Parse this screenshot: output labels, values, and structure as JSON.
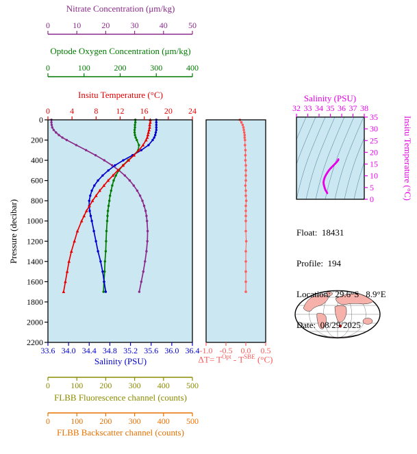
{
  "titles": {
    "nitrate": "Nitrate Concentration (μm/kg)",
    "oxygen": "Optode Oxygen Concentration (μm/kg)",
    "temperature": "Insitu Temperature (°C)",
    "pressure": "Pressure (decibar)",
    "salinity": "Salinity (PSU)",
    "fluorescence": "FLBB Fluorescence channel (counts)",
    "backscatter": "FLBB Backscatter channel (counts)",
    "ts_salinity": "Salinity (PSU)",
    "ts_temperature": "Insitu Temperature (°C)"
  },
  "delta_label": {
    "prefix": "ΔT= T",
    "sup1": "Opt",
    "mid": " - T",
    "sup2": "SBE",
    "suffix": " (°C)"
  },
  "info": {
    "float_label": "Float:  ",
    "float_value": "18431",
    "profile_label": "Profile:  ",
    "profile_value": "194",
    "location_label": "Location:  ",
    "location_value": "29.6°S   8.9°E",
    "date_label": "Date:  ",
    "date_value": "08/29/2025"
  },
  "colors": {
    "nitrate": "#8a2b8a",
    "oxygen": "#007a00",
    "temperature": "#e60000",
    "salinity": "#0000cd",
    "pressure": "#000000",
    "delta_t": "#ff5a5a",
    "fluorescence": "#8b8b00",
    "backscatter": "#e87000",
    "ts_line": "#e800e8",
    "panel_bg": "#cbe7f2",
    "map_land": "#f5b1aa",
    "float_marker": "#e60000"
  },
  "chart_data": [
    {
      "id": "profiles",
      "type": "line",
      "ylabel": "Pressure (decibar)",
      "ylim": [
        0,
        2200
      ],
      "y_ticks": [
        0,
        200,
        400,
        600,
        800,
        1000,
        1200,
        1400,
        1600,
        1800,
        2000,
        2200
      ],
      "pressure": [
        0,
        25,
        50,
        75,
        100,
        125,
        150,
        175,
        200,
        250,
        300,
        350,
        400,
        450,
        500,
        550,
        600,
        650,
        700,
        750,
        800,
        850,
        900,
        950,
        1000,
        1100,
        1200,
        1300,
        1400,
        1500,
        1600,
        1700
      ],
      "series": [
        {
          "name": "Insitu Temperature (°C)",
          "color_key": "temperature",
          "xlim": [
            0,
            24
          ],
          "ticks": [
            "0",
            "4",
            "8",
            "12",
            "16",
            "20",
            "24"
          ],
          "values": [
            17.0,
            17.0,
            16.9,
            16.9,
            16.8,
            16.7,
            16.6,
            16.5,
            16.3,
            15.8,
            15.1,
            14.3,
            13.4,
            12.5,
            11.6,
            10.8,
            10.0,
            9.3,
            8.6,
            8.0,
            7.4,
            6.9,
            6.4,
            6.0,
            5.6,
            4.9,
            4.4,
            3.9,
            3.5,
            3.2,
            2.9,
            2.6
          ]
        },
        {
          "name": "Salinity (PSU)",
          "color_key": "salinity",
          "xlim": [
            33.6,
            36.4
          ],
          "ticks": [
            "33.6",
            "34.0",
            "34.4",
            "34.8",
            "35.2",
            "35.6",
            "36.0",
            "36.4"
          ],
          "values": [
            35.7,
            35.7,
            35.7,
            35.7,
            35.7,
            35.69,
            35.68,
            35.66,
            35.63,
            35.55,
            35.41,
            35.24,
            35.06,
            34.9,
            34.77,
            34.66,
            34.57,
            34.5,
            34.45,
            34.42,
            34.4,
            34.4,
            34.41,
            34.43,
            34.45,
            34.49,
            34.53,
            34.57,
            34.62,
            34.66,
            34.69,
            34.72
          ]
        },
        {
          "name": "Optode Oxygen Concentration (μm/kg)",
          "color_key": "oxygen",
          "xlim": [
            0,
            400
          ],
          "ticks": [
            "0",
            "100",
            "200",
            "300",
            "400"
          ],
          "values": [
            242,
            242,
            241,
            241,
            240,
            240,
            241,
            243,
            246,
            252,
            250,
            238,
            222,
            208,
            196,
            188,
            182,
            178,
            175,
            172,
            170,
            168,
            166,
            165,
            164,
            162,
            161,
            160,
            158,
            157,
            155,
            154
          ]
        },
        {
          "name": "Nitrate Concentration (μm/kg)",
          "color_key": "nitrate",
          "xlim": [
            0,
            50
          ],
          "ticks": [
            "0",
            "10",
            "20",
            "30",
            "40",
            "50"
          ],
          "values": [
            1.2,
            1.2,
            1.3,
            1.5,
            2.0,
            2.8,
            3.8,
            5.0,
            6.5,
            9.8,
            13.2,
            16.5,
            19.5,
            22.2,
            24.6,
            26.6,
            28.3,
            29.7,
            30.9,
            31.9,
            32.7,
            33.3,
            33.8,
            34.1,
            34.3,
            34.5,
            34.4,
            34.1,
            33.6,
            33.0,
            32.3,
            31.6
          ]
        }
      ],
      "extra_axes": [
        {
          "name": "FLBB Fluorescence channel (counts)",
          "color_key": "fluorescence",
          "xlim": [
            0,
            500
          ],
          "ticks": [
            "0",
            "100",
            "200",
            "300",
            "400",
            "500"
          ]
        },
        {
          "name": "FLBB Backscatter channel (counts)",
          "color_key": "backscatter",
          "xlim": [
            0,
            500
          ],
          "ticks": [
            "0",
            "100",
            "200",
            "300",
            "400",
            "500"
          ]
        }
      ]
    },
    {
      "id": "delta_t",
      "type": "scatter",
      "xlabel": "ΔT= TOpt - TSBE (°C)",
      "xlim": [
        -1.0,
        0.5
      ],
      "x_ticks": [
        "-1.0",
        "-0.5",
        "0.0",
        "0.5"
      ],
      "ylim": [
        0,
        2200
      ],
      "pressure": [
        0,
        25,
        50,
        75,
        100,
        125,
        150,
        175,
        200,
        250,
        300,
        350,
        400,
        450,
        500,
        550,
        600,
        650,
        700,
        750,
        800,
        850,
        900,
        950,
        1000,
        1100,
        1200,
        1300,
        1400,
        1500,
        1600,
        1700
      ],
      "values": [
        -0.15,
        -0.11,
        -0.08,
        -0.06,
        -0.05,
        -0.04,
        -0.03,
        -0.03,
        -0.02,
        -0.02,
        -0.01,
        -0.01,
        -0.01,
        0.0,
        0.0,
        0.0,
        0.0,
        -0.01,
        0.0,
        0.0,
        0.01,
        0.0,
        0.0,
        0.0,
        0.0,
        0.0,
        0.01,
        0.0,
        0.0,
        0.0,
        0.0,
        0.0
      ]
    },
    {
      "id": "ts",
      "type": "line",
      "xlabel": "Salinity (PSU)",
      "xlim": [
        32,
        38
      ],
      "x_ticks": [
        "32",
        "33",
        "34",
        "35",
        "36",
        "37",
        "38"
      ],
      "ylabel": "Insitu Temperature (°C)",
      "ylim": [
        0,
        35
      ],
      "y_ticks": [
        "0",
        "5",
        "10",
        "15",
        "20",
        "25",
        "30",
        "35"
      ],
      "note": "curve uses salinity/temperature series from profiles chart"
    }
  ],
  "map": {
    "name": "world-map-mollweide",
    "float_location": "29.6°S 8.9°E"
  }
}
